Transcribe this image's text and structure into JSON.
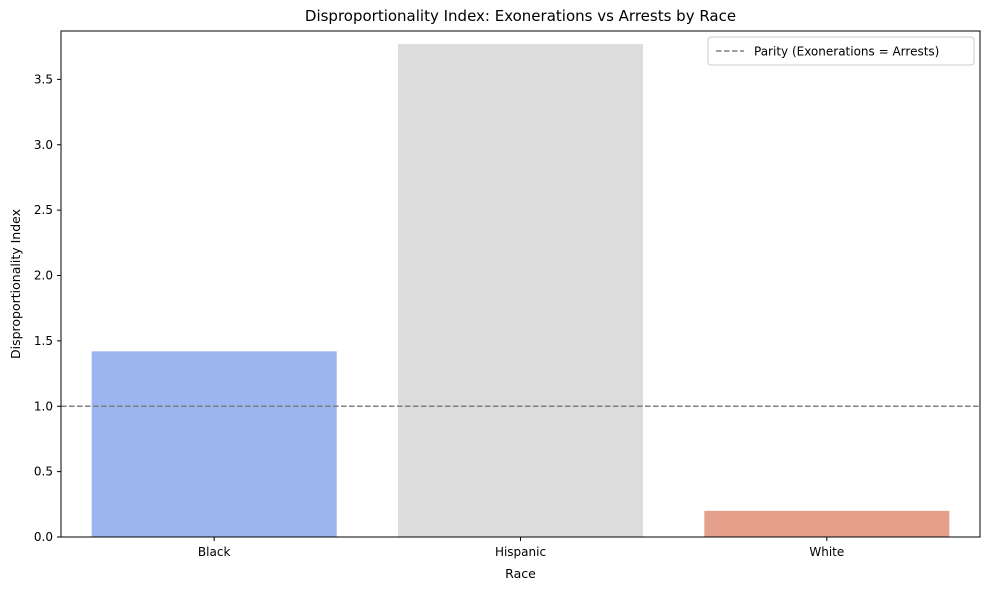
{
  "chart_data": {
    "type": "bar",
    "title": "Disproportionality Index: Exonerations vs Arrests by Race",
    "xlabel": "Race",
    "ylabel": "Disproportionality Index",
    "categories": [
      "Black",
      "Hispanic",
      "White"
    ],
    "values": [
      1.42,
      3.77,
      0.2
    ],
    "colors": [
      "#9bb5f1",
      "#dcdcdc",
      "#e4a08a"
    ],
    "ylim": [
      0,
      3.87
    ],
    "yticks": [
      "0.0",
      "0.5",
      "1.0",
      "1.5",
      "2.0",
      "2.5",
      "3.0",
      "3.5"
    ],
    "ytick_values": [
      0,
      0.5,
      1.0,
      1.5,
      2.0,
      2.5,
      3.0,
      3.5
    ],
    "grid": false,
    "reference_line": {
      "value": 1.0,
      "label": "Parity (Exonerations = Arrests)",
      "color": "#808080",
      "style": "dashed"
    },
    "legend": {
      "placement": "top-right",
      "entries": [
        "Parity (Exonerations = Arrests)"
      ]
    }
  }
}
